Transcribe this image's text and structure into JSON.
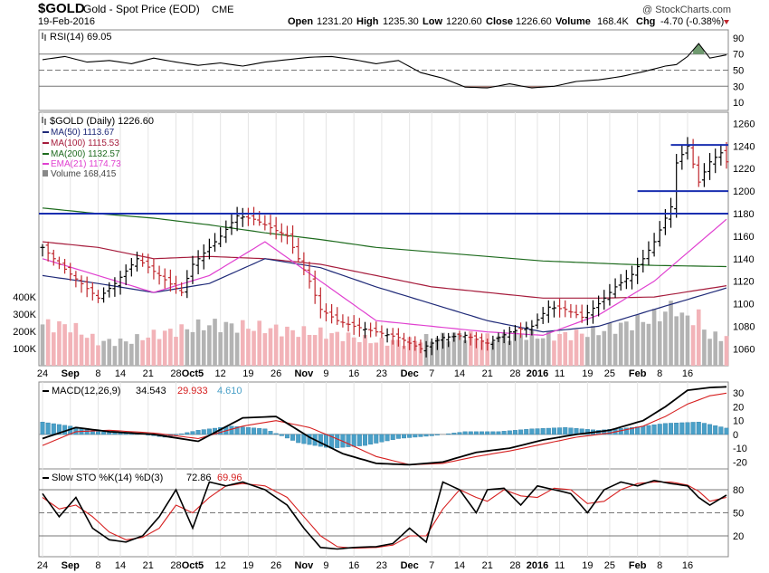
{
  "header": {
    "symbol": "$GOLD",
    "name": "Gold - Spot Price (EOD)",
    "exchange": "CME",
    "date": "19-Feb-2016",
    "copyright": "@ StockCharts.com",
    "quote": {
      "open_label": "Open",
      "open": "1231.20",
      "high_label": "High",
      "high": "1235.30",
      "low_label": "Low",
      "low": "1220.60",
      "close_label": "Close",
      "close": "1226.60",
      "volume_label": "Volume",
      "volume": "168.4K",
      "chg_label": "Chg",
      "chg": "-4.70 (-0.38%)"
    }
  },
  "colors": {
    "up": "#000000",
    "down": "#c0282e",
    "ma50": "#1f2a78",
    "ma100": "#a61c3c",
    "ma200": "#1e6b1e",
    "ema21": "#e040d0",
    "vol_up": "#b3b3b3",
    "vol_down": "#f2b3b8",
    "hline": "#1a2fb0",
    "macd_hist": "#4aa0c8",
    "signal": "#d62020"
  },
  "chart_data": [
    {
      "type": "line",
      "panel": "rsi",
      "legend": "RSI(14) 69.05",
      "ylim": [
        0,
        100
      ],
      "ticks": [
        90,
        70,
        50,
        30,
        10
      ],
      "x": [
        0,
        4,
        8,
        12,
        16,
        20,
        24,
        28,
        32,
        36,
        40,
        44,
        48,
        52,
        56,
        60,
        64,
        68,
        72,
        76,
        80,
        84,
        88,
        92,
        96,
        100,
        104,
        108,
        112,
        114,
        116,
        118,
        120,
        123
      ],
      "values": [
        63,
        67,
        60,
        62,
        58,
        65,
        60,
        56,
        59,
        55,
        60,
        63,
        66,
        67,
        63,
        58,
        62,
        47,
        40,
        29,
        28,
        33,
        28,
        30,
        36,
        38,
        42,
        48,
        55,
        57,
        67,
        83,
        65,
        69
      ]
    },
    {
      "type": "bar",
      "panel": "price",
      "legend": [
        "$GOLD (Daily) 1226.60",
        "MA(50) 1113.67",
        "MA(100) 1115.53",
        "MA(200) 1132.57",
        "EMA(21) 1174.73",
        "Volume 168,415"
      ],
      "ylim": [
        1045,
        1270
      ],
      "ticks": [
        1260,
        1240,
        1220,
        1200,
        1180,
        1160,
        1140,
        1120,
        1100,
        1080,
        1060
      ],
      "x_ticks": [
        {
          "i": 0,
          "label": "24"
        },
        {
          "i": 5,
          "label": "Sep"
        },
        {
          "i": 10,
          "label": "8"
        },
        {
          "i": 14,
          "label": "14"
        },
        {
          "i": 19,
          "label": "21"
        },
        {
          "i": 24,
          "label": "28"
        },
        {
          "i": 27,
          "label": "Oct5"
        },
        {
          "i": 32,
          "label": "12"
        },
        {
          "i": 37,
          "label": "19"
        },
        {
          "i": 42,
          "label": "26"
        },
        {
          "i": 47,
          "label": "Nov"
        },
        {
          "i": 51,
          "label": "9"
        },
        {
          "i": 56,
          "label": "16"
        },
        {
          "i": 61,
          "label": "23"
        },
        {
          "i": 66,
          "label": "Dec"
        },
        {
          "i": 70,
          "label": "7"
        },
        {
          "i": 75,
          "label": "14"
        },
        {
          "i": 80,
          "label": "21"
        },
        {
          "i": 85,
          "label": "28"
        },
        {
          "i": 89,
          "label": "2016"
        },
        {
          "i": 93,
          "label": "11"
        },
        {
          "i": 98,
          "label": "19"
        },
        {
          "i": 102,
          "label": "25"
        },
        {
          "i": 107,
          "label": "Feb"
        },
        {
          "i": 111,
          "label": "8"
        },
        {
          "i": 116,
          "label": "16"
        }
      ],
      "ohlc_anchors": {
        "x": [
          0,
          3,
          6,
          10,
          13,
          17,
          21,
          25,
          27,
          29,
          32,
          35,
          38,
          42,
          44,
          46,
          48,
          50,
          53,
          56,
          60,
          64,
          68,
          72,
          76,
          80,
          84,
          88,
          91,
          94,
          97,
          100,
          103,
          106,
          108,
          110,
          112,
          113,
          114,
          116,
          118,
          120,
          122,
          123
        ],
        "close": [
          1150,
          1135,
          1122,
          1105,
          1118,
          1140,
          1125,
          1110,
          1135,
          1145,
          1160,
          1178,
          1175,
          1165,
          1160,
          1140,
          1120,
          1095,
          1085,
          1080,
          1075,
          1070,
          1060,
          1070,
          1072,
          1065,
          1075,
          1080,
          1097,
          1095,
          1088,
          1100,
          1115,
          1126,
          1140,
          1155,
          1176,
          1186,
          1225,
          1240,
          1208,
          1226,
          1234,
          1226
        ]
      },
      "horizontal_lines": [
        1180,
        1200,
        1241
      ],
      "ma": {
        "x": [
          0,
          10,
          20,
          30,
          40,
          50,
          60,
          70,
          80,
          90,
          100,
          110,
          123
        ],
        "ma50": [
          1125,
          1118,
          1110,
          1118,
          1140,
          1132,
          1115,
          1100,
          1085,
          1075,
          1080,
          1095,
          1114
        ],
        "ma100": [
          1155,
          1150,
          1140,
          1142,
          1140,
          1135,
          1125,
          1115,
          1110,
          1105,
          1105,
          1106,
          1116
        ],
        "ma200": [
          1185,
          1180,
          1176,
          1170,
          1163,
          1157,
          1150,
          1146,
          1142,
          1138,
          1136,
          1134,
          1133
        ],
        "ema21": [
          1140,
          1125,
          1110,
          1125,
          1155,
          1120,
          1085,
          1080,
          1075,
          1072,
          1090,
          1120,
          1175
        ]
      }
    },
    {
      "type": "bar",
      "panel": "volume",
      "ylim": [
        0,
        500
      ],
      "ticks": [
        {
          "v": 400,
          "label": "400K"
        },
        {
          "v": 300,
          "label": "300K"
        },
        {
          "v": 200,
          "label": "200K"
        },
        {
          "v": 100,
          "label": "100K"
        }
      ],
      "x": [
        0,
        5,
        10,
        15,
        20,
        25,
        30,
        35,
        40,
        45,
        50,
        55,
        60,
        65,
        70,
        75,
        80,
        85,
        90,
        95,
        100,
        105,
        110,
        114,
        115,
        118,
        120,
        123
      ],
      "values": [
        240,
        230,
        140,
        140,
        180,
        210,
        240,
        230,
        220,
        200,
        190,
        170,
        140,
        140,
        160,
        180,
        160,
        180,
        170,
        180,
        200,
        240,
        280,
        350,
        280,
        280,
        170,
        168
      ]
    },
    {
      "type": "line",
      "panel": "macd",
      "legend": [
        "MACD(12,26,9)",
        "34.543",
        "29.933",
        "4.610"
      ],
      "ylim": [
        -25,
        38
      ],
      "ticks": [
        30,
        20,
        10,
        0,
        -10,
        -20
      ],
      "x": [
        0,
        6,
        12,
        20,
        28,
        36,
        42,
        48,
        54,
        60,
        66,
        72,
        78,
        84,
        90,
        96,
        102,
        108,
        112,
        116,
        120,
        123
      ],
      "macd": [
        -3,
        5,
        2,
        0,
        -5,
        12,
        13,
        -2,
        -14,
        -21,
        -22,
        -20,
        -13,
        -10,
        -4,
        0,
        3,
        10,
        20,
        32,
        34,
        34.5
      ],
      "signal": [
        -8,
        2,
        3,
        1,
        -3,
        6,
        10,
        5,
        -5,
        -16,
        -22,
        -21,
        -16,
        -12,
        -7,
        -2,
        1,
        6,
        13,
        22,
        28,
        29.9
      ],
      "histogram_x": [
        0,
        5,
        10,
        16,
        22,
        28,
        34,
        40,
        46,
        52,
        58,
        64,
        70,
        76,
        82,
        88,
        94,
        100,
        106,
        112,
        118,
        123
      ],
      "histogram": [
        9,
        6,
        2,
        1,
        -2,
        3,
        6,
        4,
        -6,
        -10,
        -8,
        -3,
        -1,
        2,
        2,
        4,
        5,
        3,
        5,
        8,
        9,
        4.6
      ]
    },
    {
      "type": "line",
      "panel": "stochastic",
      "legend": [
        "Slow STO %K(14) %D(3)",
        "72.86",
        "69.96"
      ],
      "ylim": [
        0,
        100
      ],
      "ticks": [
        80,
        50,
        20
      ],
      "x": [
        0,
        3,
        6,
        9,
        12,
        15,
        18,
        21,
        24,
        27,
        30,
        33,
        36,
        40,
        44,
        47,
        50,
        53,
        56,
        60,
        63,
        66,
        69,
        72,
        75,
        78,
        80,
        83,
        86,
        89,
        92,
        95,
        98,
        101,
        104,
        107,
        110,
        113,
        116,
        118,
        120,
        123
      ],
      "k": [
        75,
        45,
        70,
        30,
        15,
        12,
        20,
        45,
        80,
        30,
        90,
        85,
        90,
        80,
        60,
        30,
        5,
        3,
        5,
        6,
        10,
        30,
        12,
        90,
        80,
        50,
        80,
        82,
        60,
        85,
        80,
        75,
        50,
        80,
        90,
        85,
        92,
        88,
        85,
        70,
        60,
        73
      ],
      "d": [
        70,
        55,
        60,
        45,
        25,
        15,
        18,
        30,
        60,
        50,
        70,
        85,
        88,
        85,
        70,
        45,
        20,
        6,
        4,
        5,
        8,
        20,
        20,
        55,
        80,
        70,
        65,
        80,
        72,
        70,
        82,
        80,
        62,
        65,
        80,
        88,
        90,
        90,
        86,
        78,
        65,
        70
      ]
    }
  ]
}
